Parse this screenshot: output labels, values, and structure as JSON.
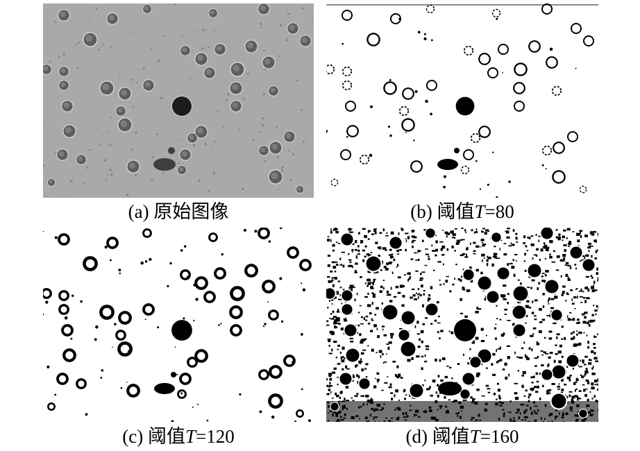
{
  "figure": {
    "panels": [
      {
        "id": "a",
        "caption_prefix": "(a) ",
        "caption_text": "原始图像",
        "caption_var": "",
        "caption_suffix": "",
        "render": "grayscale"
      },
      {
        "id": "b",
        "caption_prefix": "(b) 阈值",
        "caption_text": "",
        "caption_var": "T",
        "caption_suffix": "=80",
        "render": "rings-thin"
      },
      {
        "id": "c",
        "caption_prefix": "(c) 阈值",
        "caption_text": "",
        "caption_var": "T",
        "caption_suffix": "=120",
        "render": "rings-thick"
      },
      {
        "id": "d",
        "caption_prefix": "(d) 阈值",
        "caption_text": "",
        "caption_var": "T",
        "caption_suffix": "=160",
        "render": "filled-noisy"
      }
    ]
  }
}
